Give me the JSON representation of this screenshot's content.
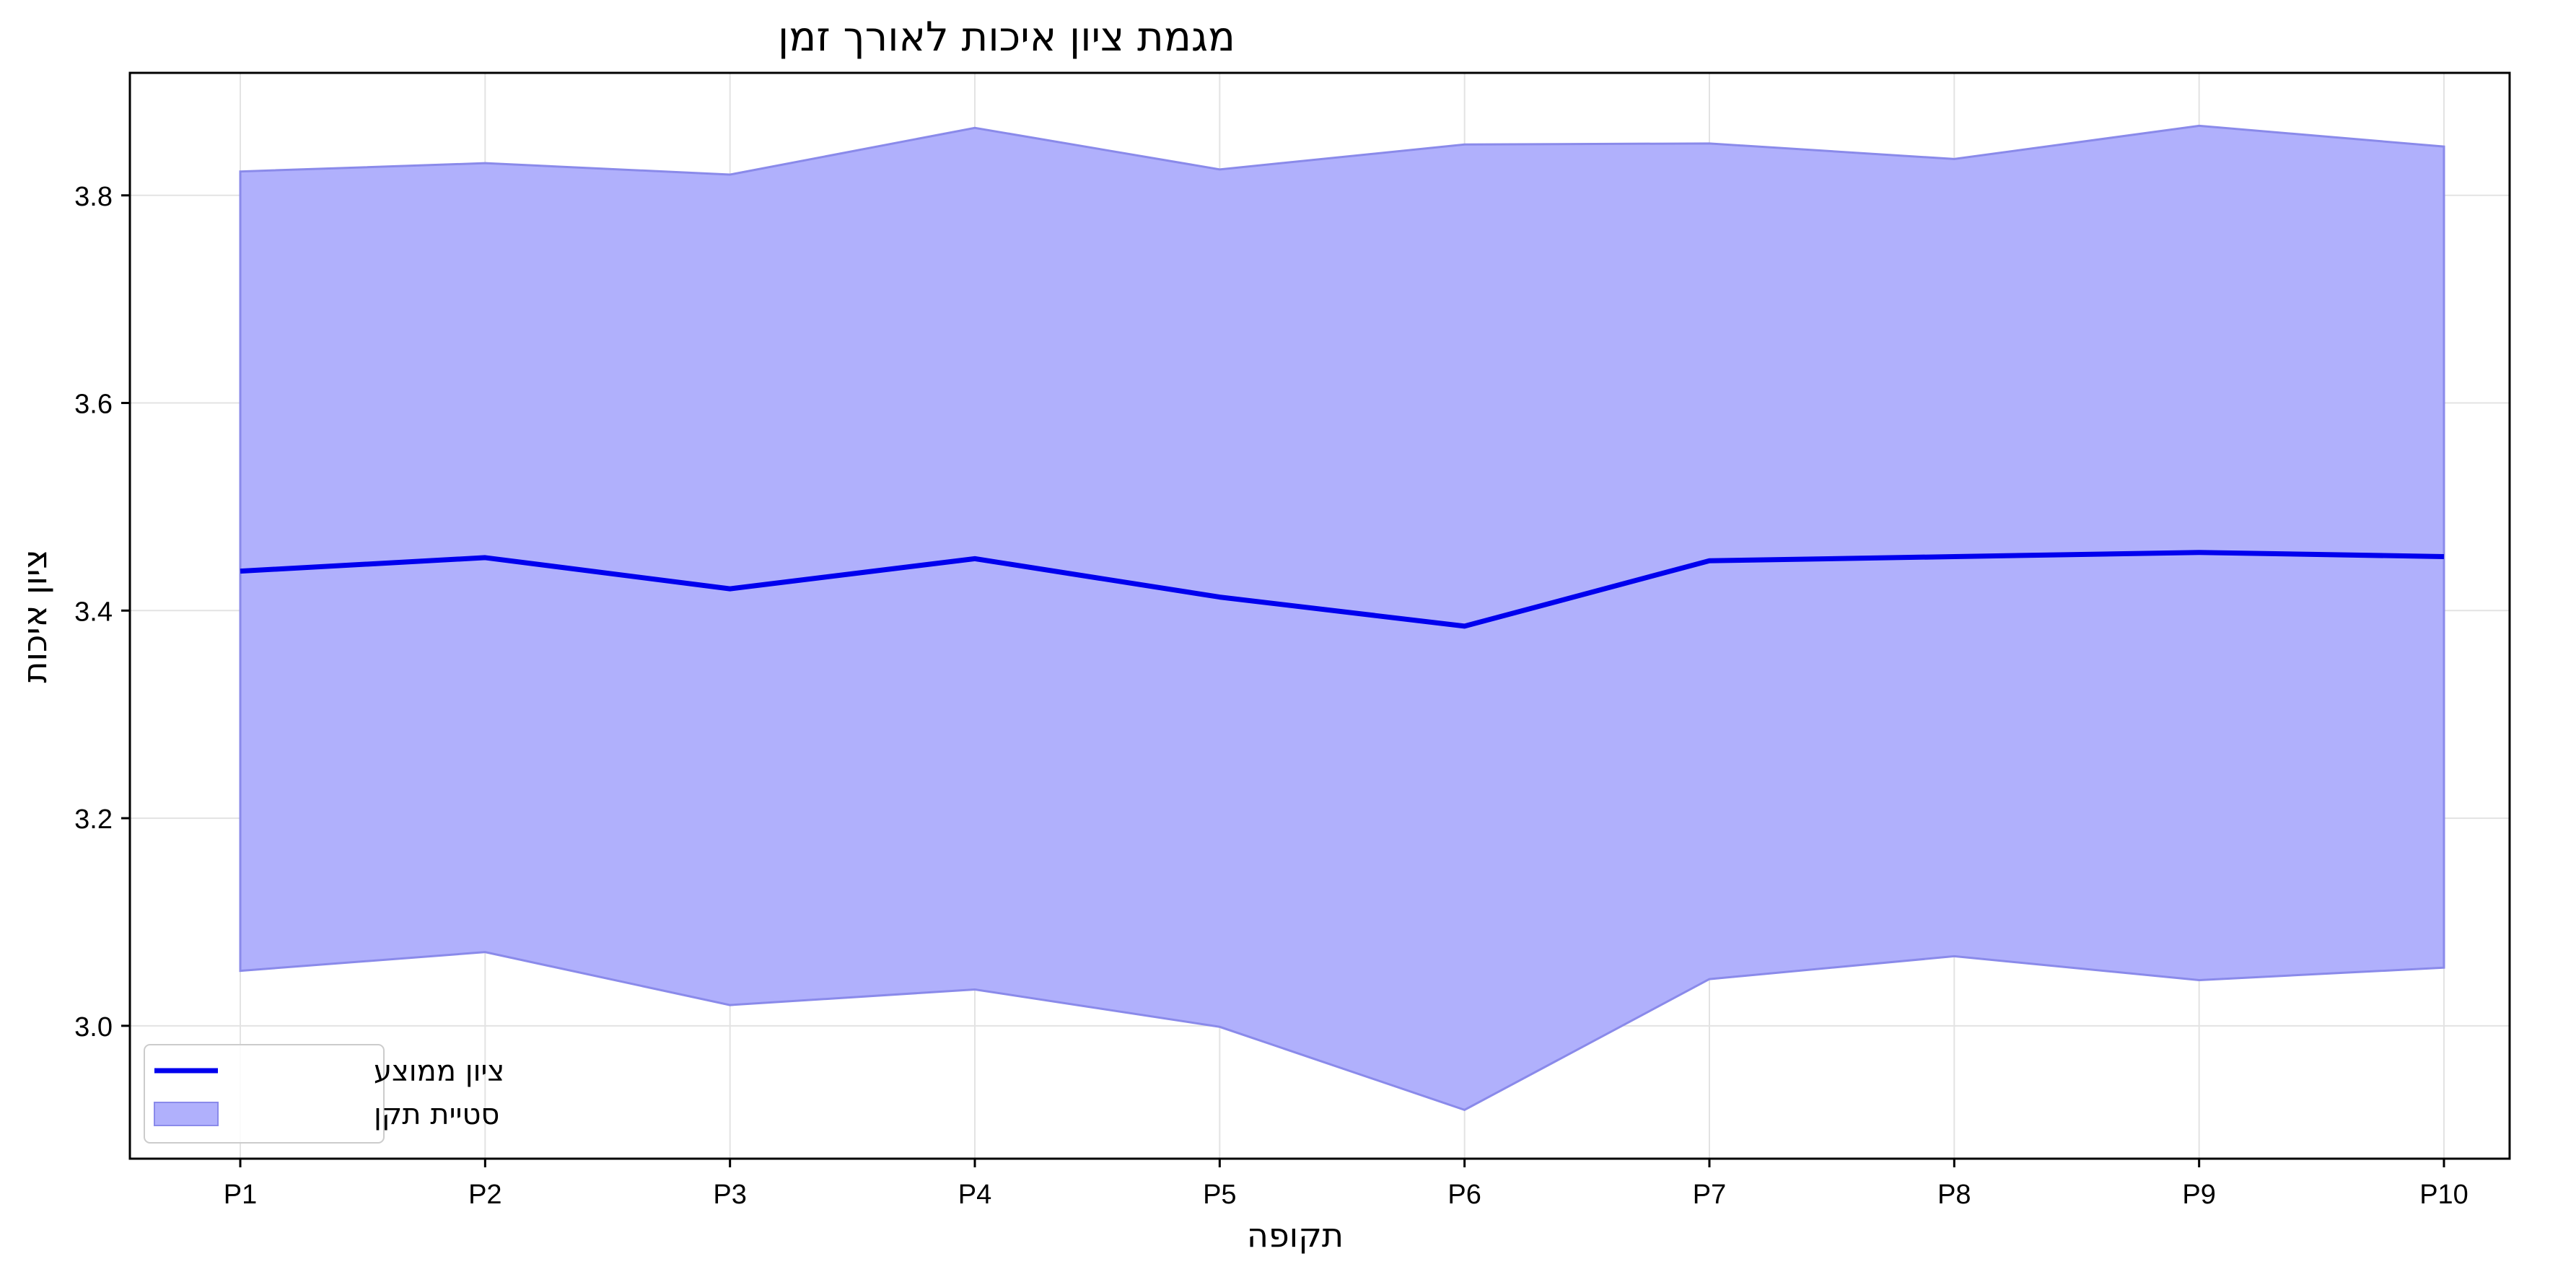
{
  "chart_data": {
    "type": "area",
    "title": "מגמת ציון איכות לאורך זמן",
    "xlabel": "תקופה",
    "ylabel": "ציון איכות",
    "categories": [
      "P1",
      "P2",
      "P3",
      "P4",
      "P5",
      "P6",
      "P7",
      "P8",
      "P9",
      "P10"
    ],
    "y_ticks": [
      "3.0",
      "3.2",
      "3.4",
      "3.6",
      "3.8"
    ],
    "ylim": [
      2.872,
      3.918
    ],
    "grid": true,
    "legend_position": "bottom-left",
    "series": [
      {
        "name": "ציון ממוצע",
        "kind": "line",
        "color": "#0000ee",
        "values": [
          3.438,
          3.451,
          3.421,
          3.45,
          3.413,
          3.385,
          3.448,
          3.452,
          3.456,
          3.452
        ]
      },
      {
        "name": "סטיית תקן",
        "kind": "band",
        "fill_color": "#b0b0fc",
        "edge_color": "#8a8aea",
        "upper": [
          3.823,
          3.831,
          3.82,
          3.865,
          3.825,
          3.849,
          3.85,
          3.835,
          3.867,
          3.847
        ],
        "lower": [
          3.053,
          3.071,
          3.02,
          3.035,
          2.999,
          2.919,
          3.045,
          3.067,
          3.044,
          3.056
        ]
      }
    ]
  }
}
